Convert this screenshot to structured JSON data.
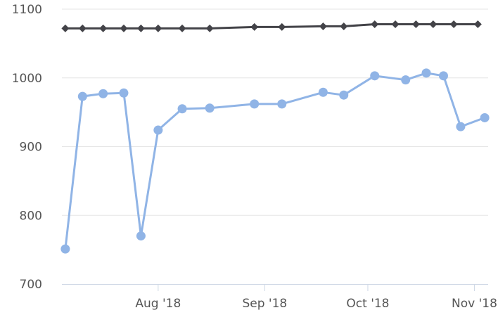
{
  "chart_data": {
    "type": "line",
    "title": "",
    "xlabel": "",
    "ylabel": "",
    "ylim": [
      700,
      1100
    ],
    "y_ticks": [
      700,
      800,
      900,
      1000,
      1100
    ],
    "x_range": [
      "2018-07-04",
      "2018-11-05"
    ],
    "x_ticks": [
      {
        "date": "2018-08-01",
        "label": "Aug '18"
      },
      {
        "date": "2018-09-01",
        "label": "Sep '18"
      },
      {
        "date": "2018-10-01",
        "label": "Oct '18"
      },
      {
        "date": "2018-11-01",
        "label": "Nov '18"
      }
    ],
    "grid": true,
    "legend": "none",
    "series": [
      {
        "color": "#434348",
        "marker": "diamond",
        "points": [
          {
            "x": "2018-07-05",
            "y": 1072
          },
          {
            "x": "2018-07-10",
            "y": 1072
          },
          {
            "x": "2018-07-16",
            "y": 1072
          },
          {
            "x": "2018-07-22",
            "y": 1072
          },
          {
            "x": "2018-07-27",
            "y": 1072
          },
          {
            "x": "2018-08-01",
            "y": 1072
          },
          {
            "x": "2018-08-08",
            "y": 1072
          },
          {
            "x": "2018-08-16",
            "y": 1072
          },
          {
            "x": "2018-08-29",
            "y": 1074
          },
          {
            "x": "2018-09-06",
            "y": 1074
          },
          {
            "x": "2018-09-18",
            "y": 1075
          },
          {
            "x": "2018-09-24",
            "y": 1075
          },
          {
            "x": "2018-10-03",
            "y": 1078
          },
          {
            "x": "2018-10-09",
            "y": 1078
          },
          {
            "x": "2018-10-15",
            "y": 1078
          },
          {
            "x": "2018-10-20",
            "y": 1078
          },
          {
            "x": "2018-10-26",
            "y": 1078
          },
          {
            "x": "2018-11-02",
            "y": 1078
          }
        ]
      },
      {
        "color": "#90b4e6",
        "marker": "circle",
        "points": [
          {
            "x": "2018-07-05",
            "y": 751
          },
          {
            "x": "2018-07-10",
            "y": 973
          },
          {
            "x": "2018-07-16",
            "y": 977
          },
          {
            "x": "2018-07-22",
            "y": 978
          },
          {
            "x": "2018-07-27",
            "y": 770
          },
          {
            "x": "2018-08-01",
            "y": 924
          },
          {
            "x": "2018-08-08",
            "y": 955
          },
          {
            "x": "2018-08-16",
            "y": 956
          },
          {
            "x": "2018-08-29",
            "y": 962
          },
          {
            "x": "2018-09-06",
            "y": 962
          },
          {
            "x": "2018-09-18",
            "y": 979
          },
          {
            "x": "2018-09-24",
            "y": 975
          },
          {
            "x": "2018-10-03",
            "y": 1003
          },
          {
            "x": "2018-10-12",
            "y": 997
          },
          {
            "x": "2018-10-18",
            "y": 1007
          },
          {
            "x": "2018-10-23",
            "y": 1003
          },
          {
            "x": "2018-10-28",
            "y": 929
          },
          {
            "x": "2018-11-04",
            "y": 942
          }
        ]
      }
    ]
  }
}
